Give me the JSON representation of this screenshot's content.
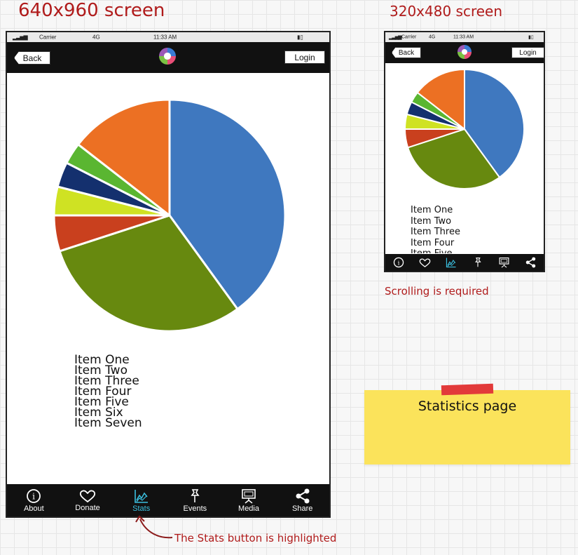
{
  "annotations": {
    "large_screen_title": "640x960 screen",
    "small_screen_title": "320x480 screen",
    "scrolling_note": "Scrolling is required",
    "stats_highlight_note": "The Stats button is highlighted",
    "sticky_note": "Statistics page"
  },
  "status_bar": {
    "carrier": "Carrier",
    "network": "4G",
    "time": "11:33 AM"
  },
  "nav": {
    "back_label": "Back",
    "login_label": "Login"
  },
  "tabs": [
    {
      "label": "About",
      "icon": "info-icon"
    },
    {
      "label": "Donate",
      "icon": "heart-icon"
    },
    {
      "label": "Stats",
      "icon": "chart-icon",
      "active": true
    },
    {
      "label": "Events",
      "icon": "pin-icon"
    },
    {
      "label": "Media",
      "icon": "presentation-icon"
    },
    {
      "label": "Share",
      "icon": "share-icon"
    }
  ],
  "list_items": [
    "Item One",
    "Item Two",
    "Item Three",
    "Item Four",
    "Item Five",
    "Item Six",
    "Item Seven"
  ],
  "colors": {
    "accent_active": "#3bc0e0",
    "annotation_red": "#b01b1b",
    "note_yellow": "#fbe35b"
  },
  "chart_data": {
    "type": "pie",
    "slices": [
      {
        "value": 40,
        "color": "#3f78bf"
      },
      {
        "value": 30,
        "color": "#67890f"
      },
      {
        "value": 5,
        "color": "#c9401e"
      },
      {
        "value": 4,
        "color": "#cfe223"
      },
      {
        "value": 3.5,
        "color": "#14306e"
      },
      {
        "value": 3,
        "color": "#5ab631"
      },
      {
        "value": 14.5,
        "color": "#ec7023"
      }
    ]
  }
}
